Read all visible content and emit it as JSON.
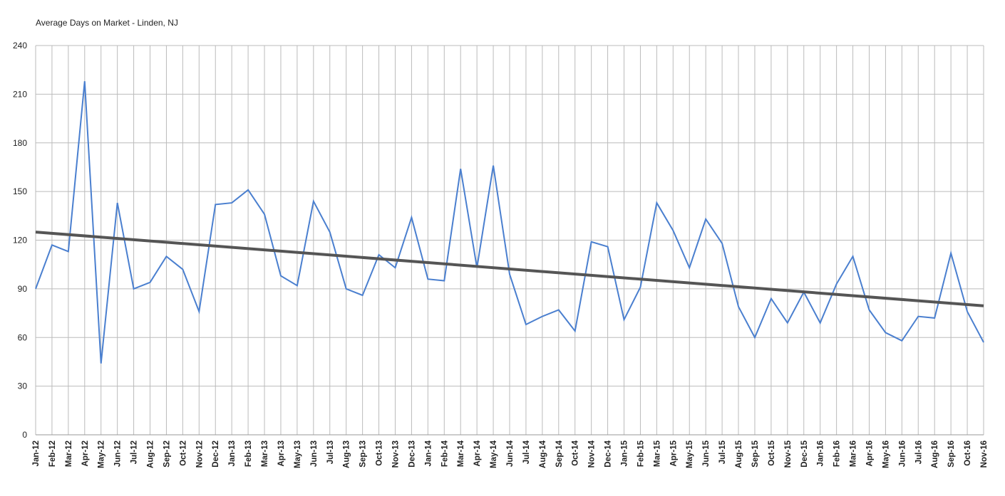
{
  "chart_data": {
    "type": "line",
    "title": "Average Days on Market - Linden, NJ",
    "categories": [
      "Jan-12",
      "Feb-12",
      "Mar-12",
      "Apr-12",
      "May-12",
      "Jun-12",
      "Jul-12",
      "Aug-12",
      "Sep-12",
      "Oct-12",
      "Nov-12",
      "Dec-12",
      "Jan-13",
      "Feb-13",
      "Mar-13",
      "Apr-13",
      "May-13",
      "Jun-13",
      "Jul-13",
      "Aug-13",
      "Sep-13",
      "Oct-13",
      "Nov-13",
      "Dec-13",
      "Jan-14",
      "Feb-14",
      "Mar-14",
      "Apr-14",
      "May-14",
      "Jun-14",
      "Jul-14",
      "Aug-14",
      "Sep-14",
      "Oct-14",
      "Nov-14",
      "Dec-14",
      "Jan-15",
      "Feb-15",
      "Mar-15",
      "Apr-15",
      "May-15",
      "Jun-15",
      "Jul-15",
      "Aug-15",
      "Sep-15",
      "Oct-15",
      "Nov-15",
      "Dec-15",
      "Jan-16",
      "Feb-16",
      "Mar-16",
      "Apr-16",
      "May-16",
      "Jun-16",
      "Jul-16",
      "Aug-16",
      "Sep-16",
      "Oct-16",
      "Nov-16"
    ],
    "values": [
      90,
      117,
      113,
      218,
      44,
      143,
      90,
      94,
      110,
      102,
      76,
      142,
      143,
      151,
      136,
      98,
      92,
      144,
      125,
      90,
      86,
      111,
      103,
      134,
      96,
      95,
      164,
      103,
      166,
      99,
      68,
      73,
      77,
      64,
      119,
      116,
      71,
      91,
      143,
      126,
      103,
      133,
      118,
      79,
      60,
      84,
      69,
      88,
      69,
      93,
      110,
      77,
      63,
      58,
      73,
      72,
      112,
      76,
      57
    ],
    "color": "#4a7fcf",
    "trend": {
      "start": 125,
      "end": 79.5,
      "color": "#555555"
    },
    "ylim": [
      0,
      240
    ],
    "yticks": [
      0,
      30,
      60,
      90,
      120,
      150,
      180,
      210,
      240
    ],
    "grid": true
  }
}
